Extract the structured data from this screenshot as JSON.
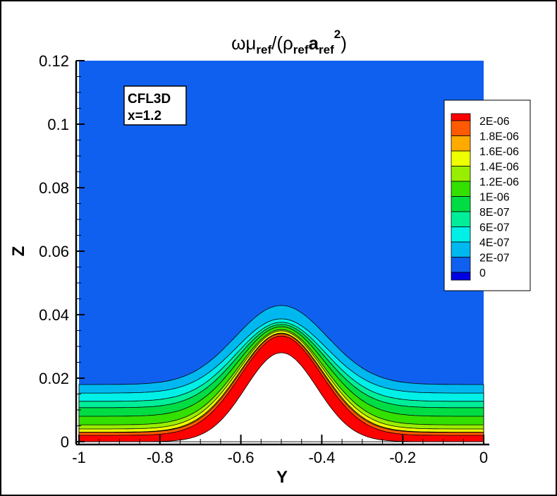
{
  "chart_data": {
    "type": "heatmap",
    "subtype": "filled-contour",
    "title_parts": [
      {
        "text": "ωμ",
        "style": "normal"
      },
      {
        "text": "ref",
        "style": "sub"
      },
      {
        "text": "/(ρ",
        "style": "normal"
      },
      {
        "text": "ref",
        "style": "sub"
      },
      {
        "text": "a",
        "style": "bold"
      },
      {
        "text": "ref",
        "style": "sub"
      },
      {
        "text": "2",
        "style": "sup"
      },
      {
        "text": ")",
        "style": "normal"
      }
    ],
    "xlabel": "Y",
    "ylabel": "Z",
    "xlim": [
      -1,
      0
    ],
    "ylim": [
      0,
      0.12
    ],
    "xticks": [
      "-1",
      "-0.8",
      "-0.6",
      "-0.4",
      "-0.2",
      "0"
    ],
    "xtick_values": [
      -1,
      -0.8,
      -0.6,
      -0.4,
      -0.2,
      0
    ],
    "yticks": [
      "0",
      "0.02",
      "0.04",
      "0.06",
      "0.08",
      "0.1",
      "0.12"
    ],
    "ytick_values": [
      0,
      0.02,
      0.04,
      0.06,
      0.08,
      0.1,
      0.12
    ],
    "grid": false,
    "annotation": {
      "line1": "CFL3D",
      "line2": "x=1.2"
    },
    "legend_placement": "right",
    "background_color": "#1060f0",
    "levels": [
      {
        "label": "2E-06",
        "value": 2e-06,
        "color": "#ff0000",
        "z_edge": 0.002,
        "z_peak": 0.0333
      },
      {
        "label": "1.8E-06",
        "value": 1.8e-06,
        "color": "#ff5a00",
        "z_edge": 0.0029,
        "z_peak": 0.034
      },
      {
        "label": "1.6E-06",
        "value": 1.6e-06,
        "color": "#ffaa00",
        "z_edge": 0.003,
        "z_peak": 0.0342
      },
      {
        "label": "1.4E-06",
        "value": 1.4e-06,
        "color": "#eeff00",
        "z_edge": 0.004,
        "z_peak": 0.0349
      },
      {
        "label": "1.2E-06",
        "value": 1.2e-06,
        "color": "#99ee00",
        "z_edge": 0.0053,
        "z_peak": 0.0353
      },
      {
        "label": "1E-06",
        "value": 1e-06,
        "color": "#33e000",
        "z_edge": 0.008,
        "z_peak": 0.0362
      },
      {
        "label": "8E-07",
        "value": 8e-07,
        "color": "#00dd44",
        "z_edge": 0.0107,
        "z_peak": 0.0369
      },
      {
        "label": "6E-07",
        "value": 6e-07,
        "color": "#00ee99",
        "z_edge": 0.0127,
        "z_peak": 0.0376
      },
      {
        "label": "4E-07",
        "value": 4e-07,
        "color": "#00f0e8",
        "z_edge": 0.0153,
        "z_peak": 0.0387
      },
      {
        "label": "2E-07",
        "value": 2e-07,
        "color": "#00b8f0",
        "z_edge": 0.018,
        "z_peak": 0.0429
      },
      {
        "label": "0",
        "value": 0,
        "color": "#1060f0"
      }
    ],
    "legend_top_color": "#ff0000",
    "legend_bottom_color": "#0000e0",
    "body": {
      "shape": "bump",
      "center_y": -0.5,
      "peak_z": 0.028
    }
  }
}
